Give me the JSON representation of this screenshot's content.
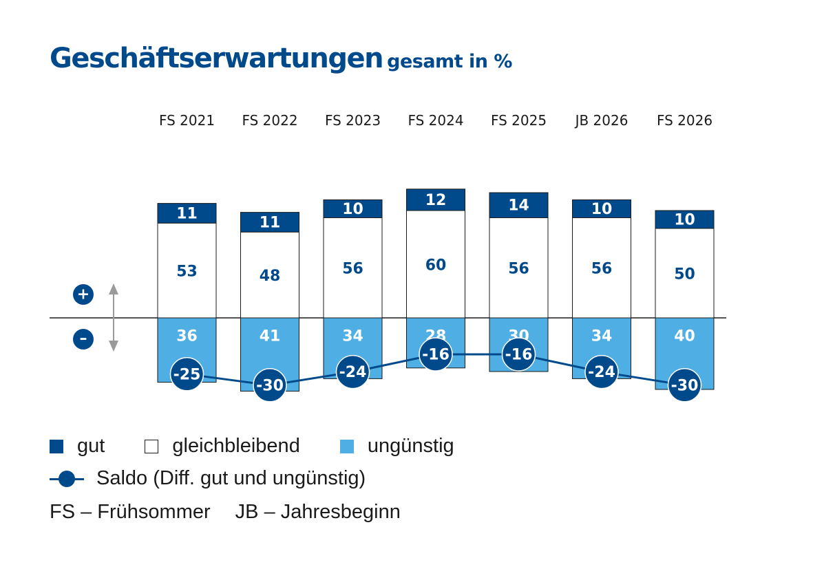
{
  "chart_data": {
    "type": "bar",
    "title": "Geschäftserwartungen",
    "subtitle": "gesamt in %",
    "categories": [
      "FS 2021",
      "FS 2022",
      "FS 2023",
      "FS 2024",
      "FS 2025",
      "JB 2026",
      "FS 2026"
    ],
    "series": [
      {
        "name": "gut",
        "values": [
          11,
          11,
          10,
          12,
          14,
          10,
          10
        ],
        "color": "#004a8c"
      },
      {
        "name": "gleichbleibend",
        "values": [
          53,
          48,
          56,
          60,
          56,
          56,
          50
        ],
        "color": "#ffffff"
      },
      {
        "name": "ungünstig",
        "values": [
          36,
          41,
          34,
          28,
          30,
          34,
          40
        ],
        "color": "#4faee3"
      },
      {
        "name": "Saldo (Diff. gut und ungünstig)",
        "type": "line",
        "values": [
          -25,
          -30,
          -24,
          -16,
          -16,
          -24,
          -30
        ],
        "color": "#004a8c"
      }
    ],
    "positive_marker": "+",
    "negative_marker": "–",
    "legend_position": "bottom-left",
    "grid": false
  },
  "legend": {
    "gut": "gut",
    "gleichbleibend": "gleichbleibend",
    "unguenstig": "ungünstig",
    "saldo": "Saldo (Diff. gut und ungünstig)"
  },
  "abbreviations": [
    "FS – Frühsommer",
    "JB – Jahresbeginn"
  ]
}
